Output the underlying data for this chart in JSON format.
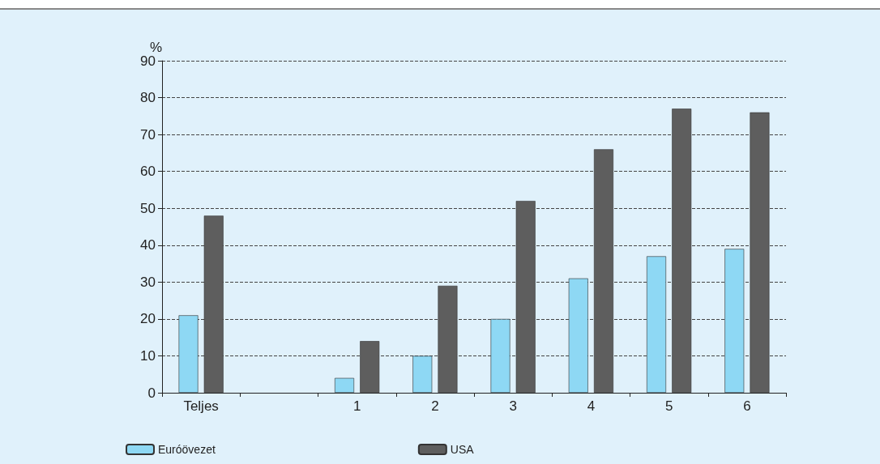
{
  "chart_data": {
    "type": "bar",
    "ylabel": "%",
    "categories": [
      "Teljes",
      null,
      "1",
      "2",
      "3",
      "4",
      "5",
      "6"
    ],
    "series": [
      {
        "name": "Euróövezet",
        "color": "#8ed8f4",
        "values": [
          21,
          null,
          4,
          10,
          20,
          31,
          37,
          39
        ]
      },
      {
        "name": "USA",
        "color": "#5e5e5e",
        "values": [
          48,
          null,
          14,
          29,
          52,
          66,
          77,
          76
        ]
      }
    ],
    "ylim": [
      0,
      90
    ],
    "yticks": [
      0,
      10,
      20,
      30,
      40,
      50,
      60,
      70,
      80,
      90
    ],
    "grid": "y",
    "legend": "bottom left"
  }
}
